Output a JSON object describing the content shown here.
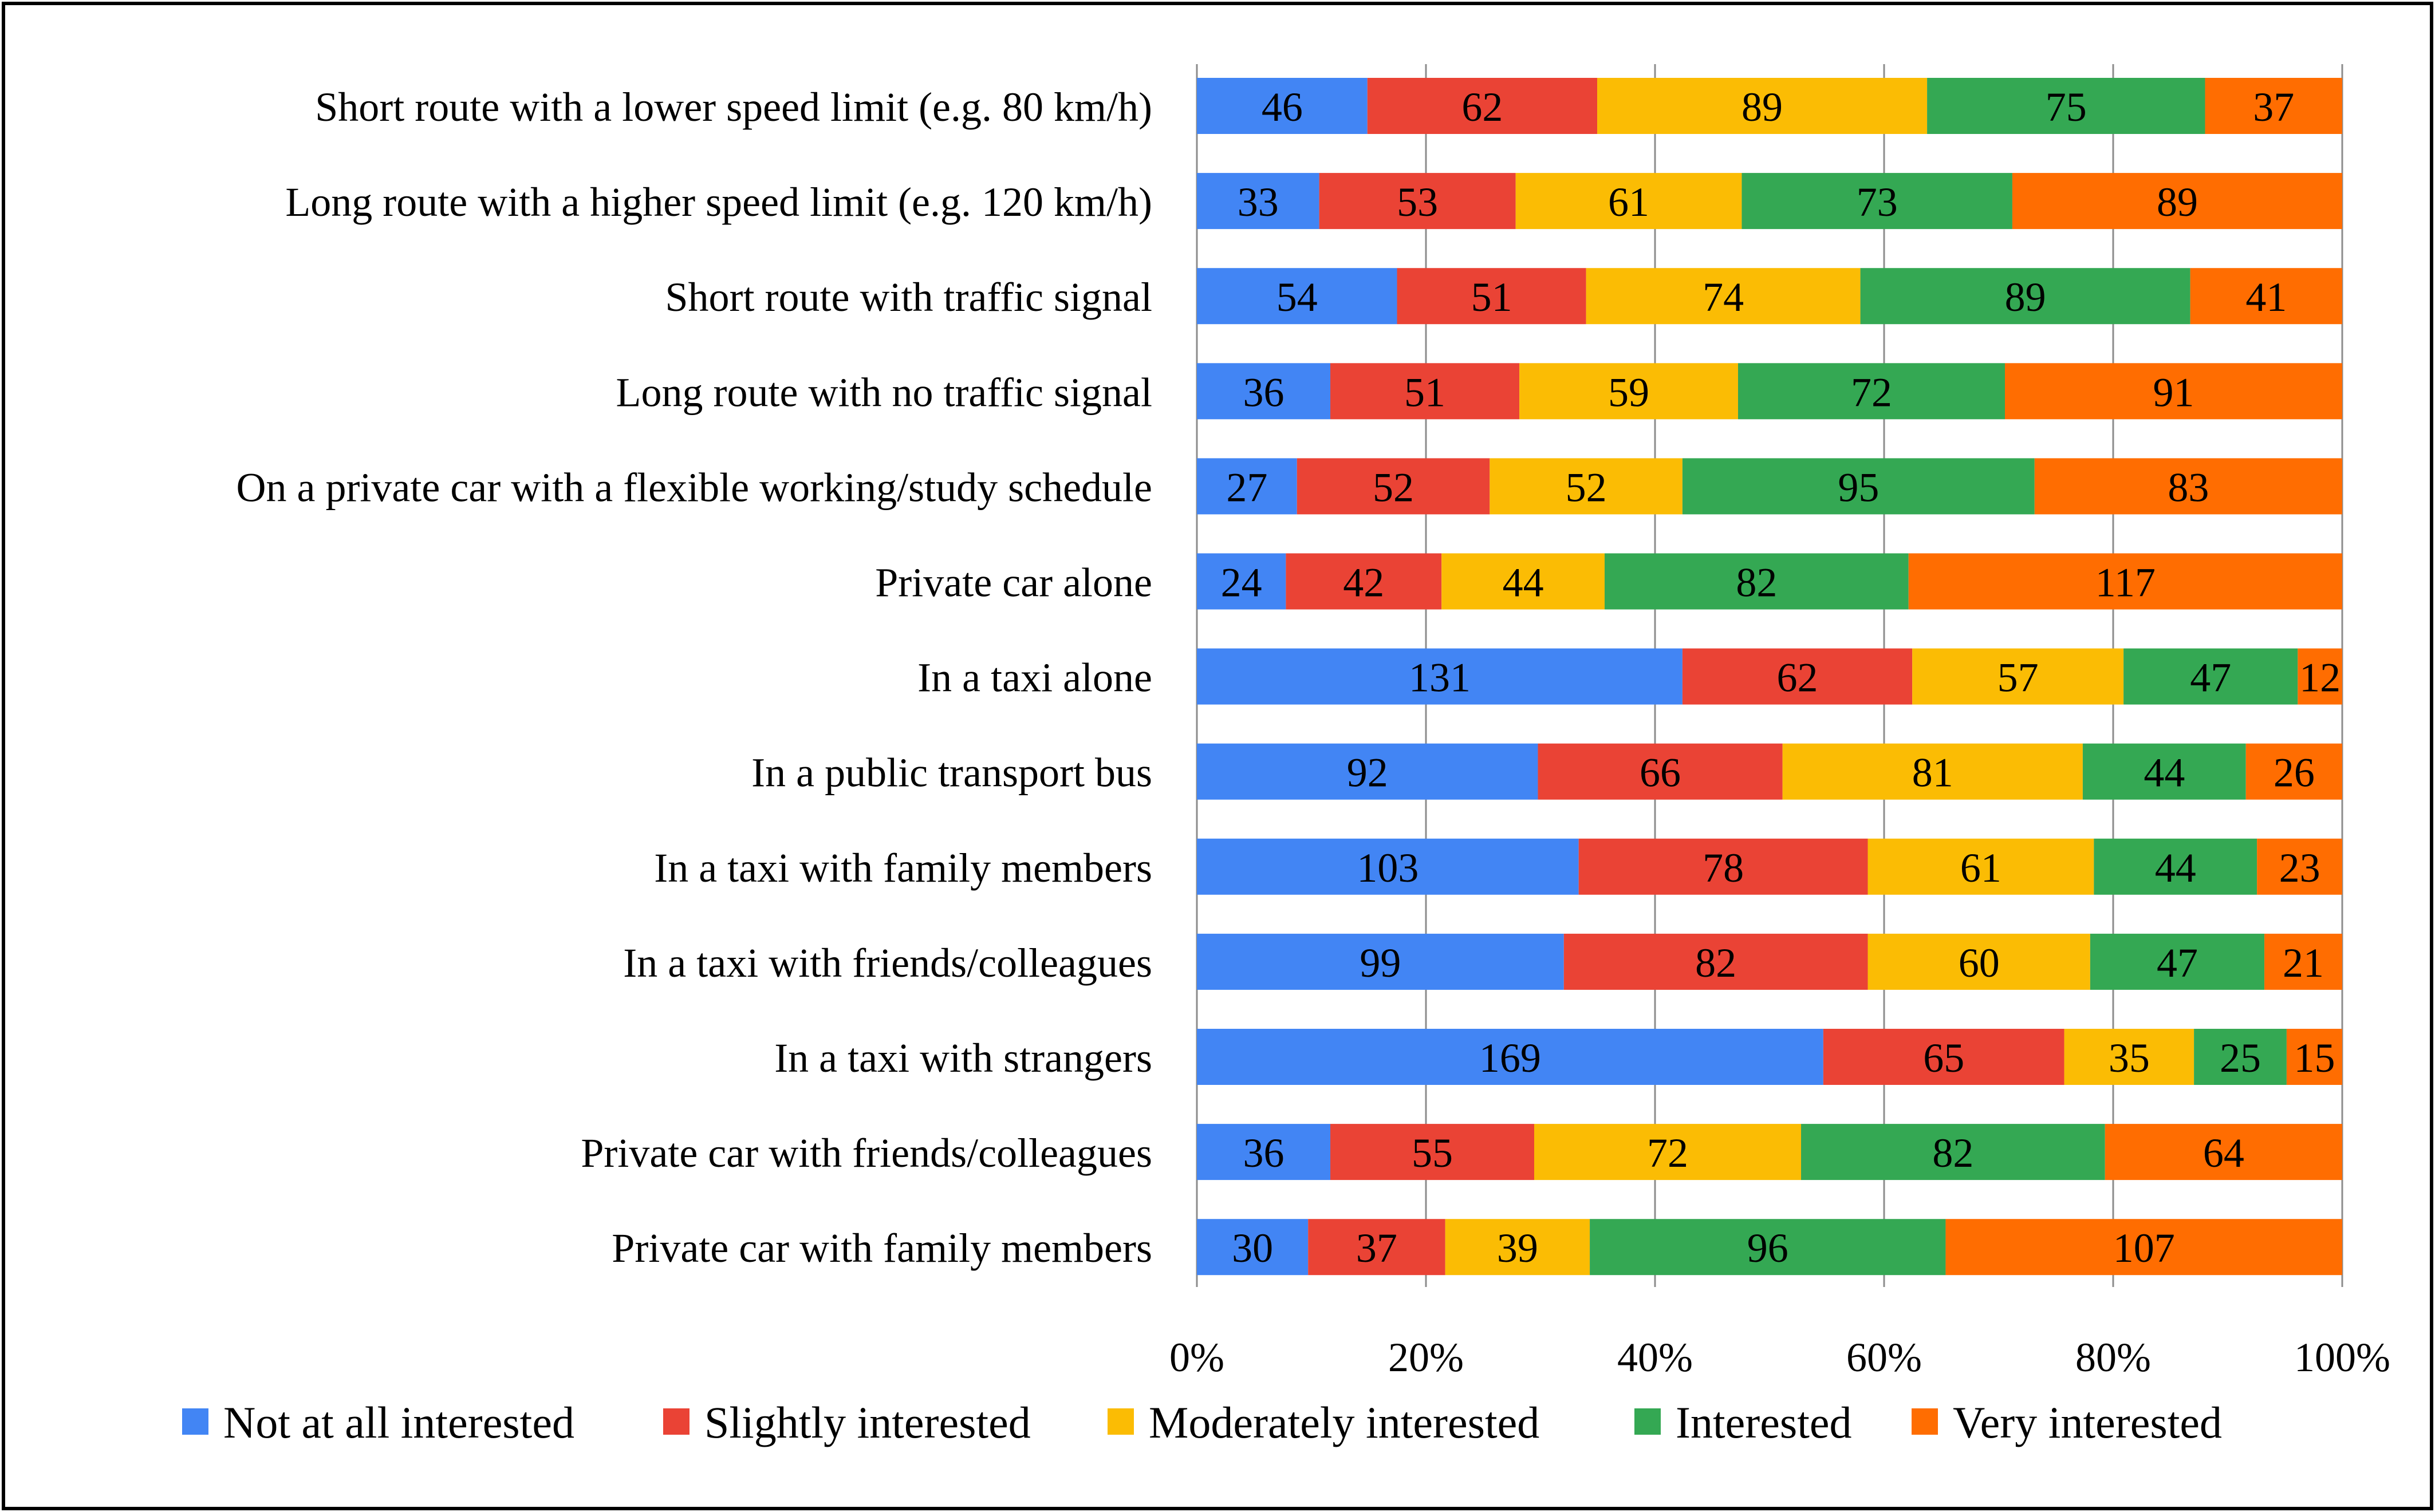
{
  "chart_data": {
    "type": "bar",
    "orientation": "horizontal",
    "stacking": "percent",
    "title": "",
    "xlabel": "",
    "ylabel": "",
    "xlim": [
      0,
      100
    ],
    "grid": true,
    "legend_position": "bottom",
    "x_ticks": [
      "0%",
      "20%",
      "40%",
      "60%",
      "80%",
      "100%"
    ],
    "categories": [
      "Short route with a lower speed limit (e.g. 80 km/h)",
      "Long route with a higher speed limit (e.g. 120 km/h)",
      "Short route with traffic signal",
      "Long route with no traffic signal",
      "On a private car with a flexible working/study schedule",
      "Private car alone",
      "In a taxi alone",
      "In a public transport bus",
      "In a taxi with family members",
      "In a taxi with friends/colleagues",
      "In a taxi with strangers",
      "Private car with friends/colleagues",
      "Private car with family members"
    ],
    "series": [
      {
        "name": "Not at all interested",
        "color": "#4285F4",
        "values": [
          46,
          33,
          54,
          36,
          27,
          24,
          131,
          92,
          103,
          99,
          169,
          36,
          30
        ]
      },
      {
        "name": "Slightly interested",
        "color": "#EA4335",
        "values": [
          62,
          53,
          51,
          51,
          52,
          42,
          62,
          66,
          78,
          82,
          65,
          55,
          37
        ]
      },
      {
        "name": "Moderately interested",
        "color": "#FBBC04",
        "values": [
          89,
          61,
          74,
          59,
          52,
          44,
          57,
          81,
          61,
          60,
          35,
          72,
          39
        ]
      },
      {
        "name": "Interested",
        "color": "#34A853",
        "values": [
          75,
          73,
          89,
          72,
          95,
          82,
          47,
          44,
          44,
          47,
          25,
          82,
          96
        ]
      },
      {
        "name": "Very interested",
        "color": "#FF6D01",
        "values": [
          37,
          89,
          41,
          91,
          83,
          117,
          12,
          26,
          23,
          21,
          15,
          64,
          107
        ]
      }
    ]
  }
}
